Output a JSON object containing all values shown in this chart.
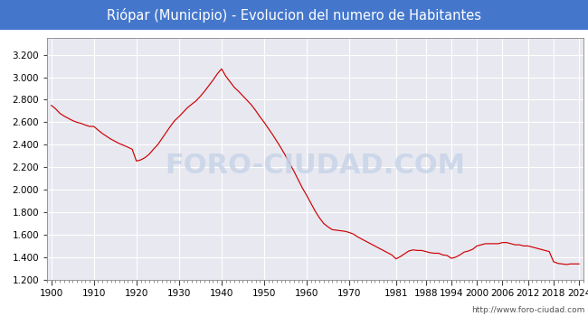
{
  "title": "Riópar (Municipio) - Evolucion del numero de Habitantes",
  "title_bg_color": "#4477cc",
  "title_text_color": "white",
  "line_color": "#cc0000",
  "bg_color": "#ffffff",
  "plot_bg_color": "#e8e8f0",
  "grid_color": "white",
  "watermark_text": "FORO-CIUDAD.COM",
  "watermark_color": "#c8d4e8",
  "url_text": "http://www.foro-ciudad.com",
  "ylim": [
    1200,
    3350
  ],
  "yticks": [
    1200,
    1400,
    1600,
    1800,
    2000,
    2200,
    2400,
    2600,
    2800,
    3000,
    3200
  ],
  "ytick_labels": [
    "1.200",
    "1.400",
    "1.600",
    "1.800",
    "2.000",
    "2.200",
    "2.400",
    "2.600",
    "2.800",
    "3.000",
    "3.200"
  ],
  "xticks": [
    1900,
    1910,
    1920,
    1930,
    1940,
    1950,
    1960,
    1970,
    1981,
    1988,
    1994,
    2000,
    2006,
    2012,
    2018,
    2024
  ],
  "years": [
    1900,
    1901,
    1902,
    1903,
    1904,
    1905,
    1906,
    1907,
    1908,
    1909,
    1910,
    1911,
    1912,
    1913,
    1914,
    1915,
    1916,
    1917,
    1918,
    1919,
    1920,
    1921,
    1922,
    1923,
    1924,
    1925,
    1926,
    1927,
    1928,
    1929,
    1930,
    1931,
    1932,
    1933,
    1934,
    1935,
    1936,
    1937,
    1938,
    1939,
    1940,
    1941,
    1942,
    1943,
    1944,
    1945,
    1946,
    1947,
    1948,
    1949,
    1950,
    1951,
    1952,
    1953,
    1954,
    1955,
    1956,
    1957,
    1958,
    1959,
    1960,
    1961,
    1962,
    1963,
    1964,
    1965,
    1966,
    1967,
    1968,
    1969,
    1970,
    1971,
    1972,
    1973,
    1974,
    1975,
    1976,
    1977,
    1978,
    1979,
    1980,
    1981,
    1982,
    1983,
    1984,
    1985,
    1986,
    1987,
    1988,
    1989,
    1990,
    1991,
    1992,
    1993,
    1994,
    1995,
    1996,
    1997,
    1998,
    1999,
    2000,
    2001,
    2002,
    2003,
    2004,
    2005,
    2006,
    2007,
    2008,
    2009,
    2010,
    2011,
    2012,
    2013,
    2014,
    2015,
    2016,
    2017,
    2018,
    2019,
    2020,
    2021,
    2022,
    2023,
    2024
  ],
  "population": [
    2750,
    2720,
    2680,
    2655,
    2635,
    2615,
    2600,
    2590,
    2575,
    2563,
    2563,
    2530,
    2500,
    2475,
    2450,
    2430,
    2410,
    2395,
    2378,
    2360,
    2255,
    2265,
    2285,
    2315,
    2360,
    2400,
    2455,
    2510,
    2565,
    2615,
    2650,
    2690,
    2730,
    2760,
    2790,
    2830,
    2875,
    2925,
    2975,
    3030,
    3075,
    3010,
    2960,
    2910,
    2875,
    2835,
    2795,
    2755,
    2705,
    2650,
    2600,
    2545,
    2490,
    2430,
    2370,
    2305,
    2235,
    2165,
    2090,
    2015,
    1950,
    1880,
    1810,
    1750,
    1700,
    1670,
    1645,
    1640,
    1635,
    1630,
    1620,
    1605,
    1580,
    1560,
    1540,
    1520,
    1500,
    1480,
    1460,
    1440,
    1420,
    1385,
    1405,
    1430,
    1455,
    1465,
    1460,
    1460,
    1450,
    1440,
    1435,
    1435,
    1420,
    1415,
    1390,
    1400,
    1420,
    1445,
    1455,
    1470,
    1500,
    1510,
    1520,
    1520,
    1520,
    1520,
    1530,
    1530,
    1520,
    1510,
    1510,
    1500,
    1500,
    1490,
    1480,
    1470,
    1460,
    1450,
    1360,
    1345,
    1340,
    1335,
    1340,
    1340,
    1340
  ]
}
